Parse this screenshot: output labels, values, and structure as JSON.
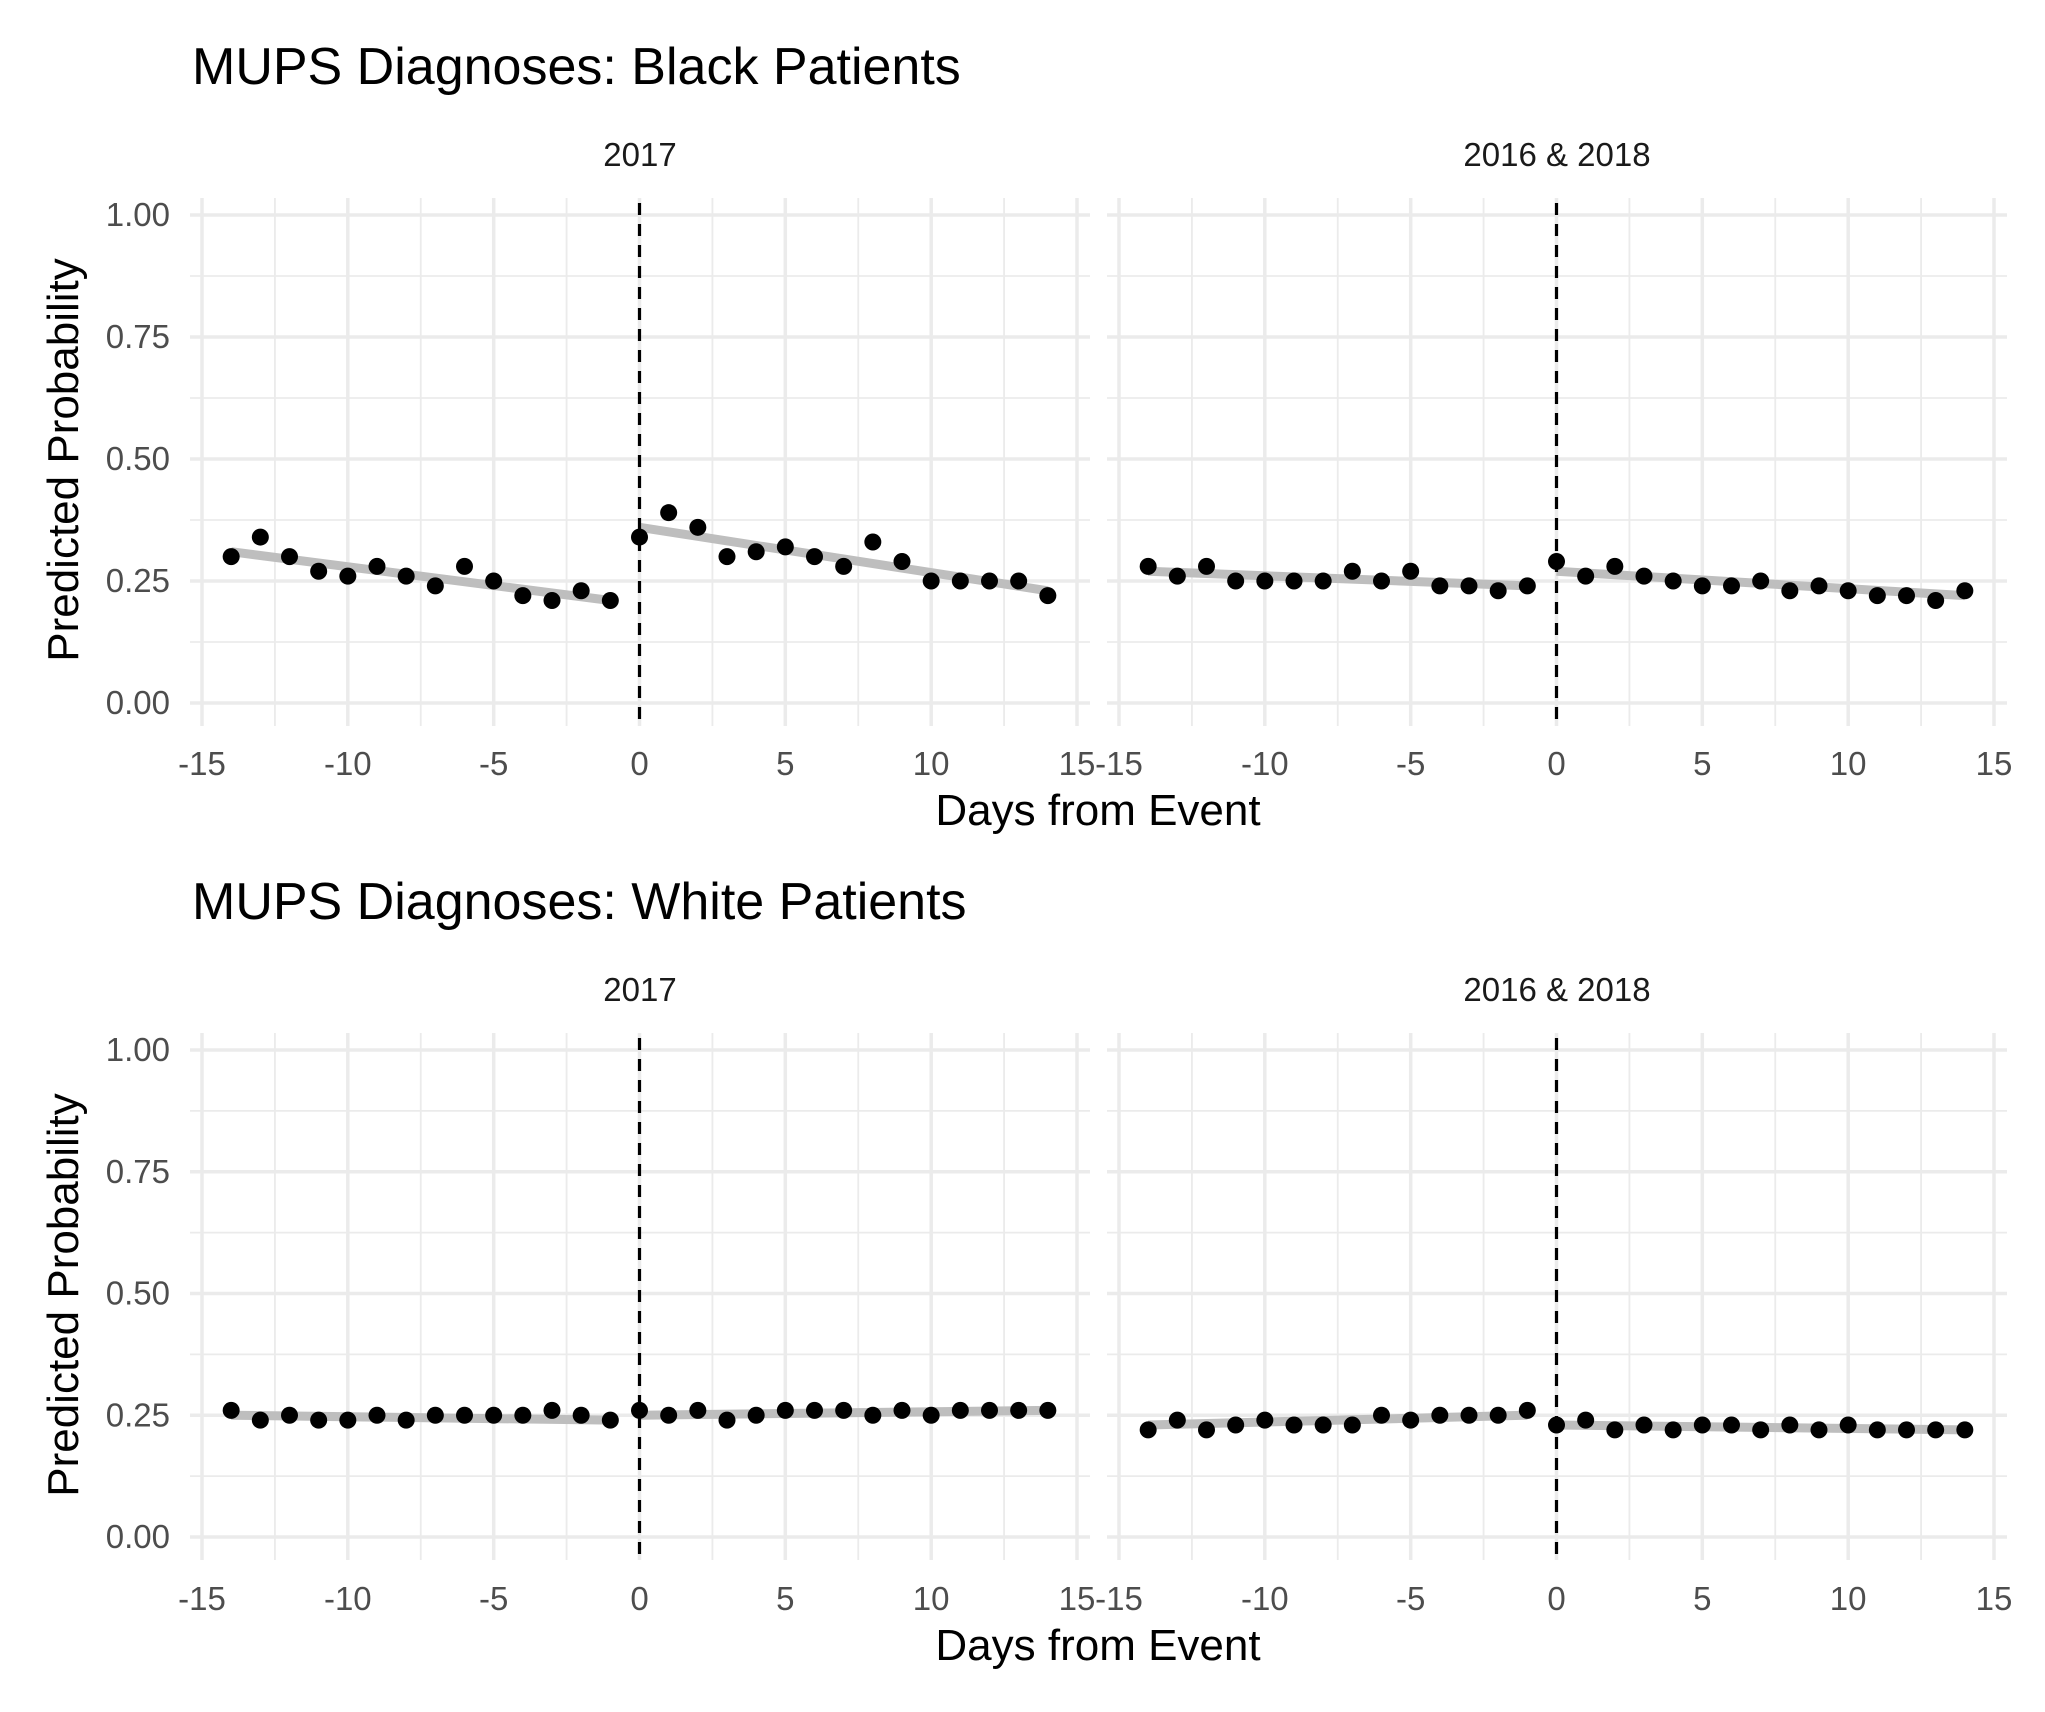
{
  "chart_data": [
    {
      "type": "scatter",
      "title": "MUPS Diagnoses: Black Patients",
      "xlabel": "Days from Event",
      "ylabel": "Predicted Probability",
      "xlim": [
        -15,
        15
      ],
      "ylim": [
        0,
        1
      ],
      "x_ticks": [
        "-15",
        "-10",
        "-5",
        "0",
        "5",
        "10",
        "15"
      ],
      "y_ticks": [
        "0.00",
        "0.25",
        "0.50",
        "0.75",
        "1.00"
      ],
      "event_line_x": 0,
      "panels": [
        {
          "label": "2017",
          "x": [
            -14,
            -13,
            -12,
            -11,
            -10,
            -9,
            -8,
            -7,
            -6,
            -5,
            -4,
            -3,
            -2,
            -1,
            0,
            1,
            2,
            3,
            4,
            5,
            6,
            7,
            8,
            9,
            10,
            11,
            12,
            13,
            14
          ],
          "y": [
            0.3,
            0.34,
            0.3,
            0.27,
            0.26,
            0.28,
            0.26,
            0.24,
            0.28,
            0.25,
            0.22,
            0.21,
            0.23,
            0.21,
            0.34,
            0.39,
            0.36,
            0.3,
            0.31,
            0.32,
            0.3,
            0.28,
            0.33,
            0.29,
            0.25,
            0.25,
            0.25,
            0.25,
            0.22
          ],
          "fit_pre": {
            "x": [
              -14,
              -1
            ],
            "y": [
              0.31,
              0.21
            ]
          },
          "fit_post": {
            "x": [
              0,
              14
            ],
            "y": [
              0.36,
              0.23
            ]
          }
        },
        {
          "label": "2016 & 2018",
          "x": [
            -14,
            -13,
            -12,
            -11,
            -10,
            -9,
            -8,
            -7,
            -6,
            -5,
            -4,
            -3,
            -2,
            -1,
            0,
            1,
            2,
            3,
            4,
            5,
            6,
            7,
            8,
            9,
            10,
            11,
            12,
            13,
            14
          ],
          "y": [
            0.28,
            0.26,
            0.28,
            0.25,
            0.25,
            0.25,
            0.25,
            0.27,
            0.25,
            0.27,
            0.24,
            0.24,
            0.23,
            0.24,
            0.29,
            0.26,
            0.28,
            0.26,
            0.25,
            0.24,
            0.24,
            0.25,
            0.23,
            0.24,
            0.23,
            0.22,
            0.22,
            0.21,
            0.23
          ],
          "fit_pre": {
            "x": [
              -14,
              -1
            ],
            "y": [
              0.27,
              0.24
            ]
          },
          "fit_post": {
            "x": [
              0,
              14
            ],
            "y": [
              0.27,
              0.22
            ]
          }
        }
      ]
    },
    {
      "type": "scatter",
      "title": "MUPS Diagnoses: White Patients",
      "xlabel": "Days from Event",
      "ylabel": "Predicted Probability",
      "xlim": [
        -15,
        15
      ],
      "ylim": [
        0,
        1
      ],
      "x_ticks": [
        "-15",
        "-10",
        "-5",
        "0",
        "5",
        "10",
        "15"
      ],
      "y_ticks": [
        "0.00",
        "0.25",
        "0.50",
        "0.75",
        "1.00"
      ],
      "event_line_x": 0,
      "panels": [
        {
          "label": "2017",
          "x": [
            -14,
            -13,
            -12,
            -11,
            -10,
            -9,
            -8,
            -7,
            -6,
            -5,
            -4,
            -3,
            -2,
            -1,
            0,
            1,
            2,
            3,
            4,
            5,
            6,
            7,
            8,
            9,
            10,
            11,
            12,
            13,
            14
          ],
          "y": [
            0.26,
            0.24,
            0.25,
            0.24,
            0.24,
            0.25,
            0.24,
            0.25,
            0.25,
            0.25,
            0.25,
            0.26,
            0.25,
            0.24,
            0.26,
            0.25,
            0.26,
            0.24,
            0.25,
            0.26,
            0.26,
            0.26,
            0.25,
            0.26,
            0.25,
            0.26,
            0.26,
            0.26,
            0.26
          ],
          "fit_pre": {
            "x": [
              -14,
              -1
            ],
            "y": [
              0.25,
              0.24
            ]
          },
          "fit_post": {
            "x": [
              0,
              14
            ],
            "y": [
              0.25,
              0.26
            ]
          }
        },
        {
          "label": "2016 & 2018",
          "x": [
            -14,
            -13,
            -12,
            -11,
            -10,
            -9,
            -8,
            -7,
            -6,
            -5,
            -4,
            -3,
            -2,
            -1,
            0,
            1,
            2,
            3,
            4,
            5,
            6,
            7,
            8,
            9,
            10,
            11,
            12,
            13,
            14
          ],
          "y": [
            0.22,
            0.24,
            0.22,
            0.23,
            0.24,
            0.23,
            0.23,
            0.23,
            0.25,
            0.24,
            0.25,
            0.25,
            0.25,
            0.26,
            0.23,
            0.24,
            0.22,
            0.23,
            0.22,
            0.23,
            0.23,
            0.22,
            0.23,
            0.22,
            0.23,
            0.22,
            0.22,
            0.22,
            0.22
          ],
          "fit_pre": {
            "x": [
              -14,
              -1
            ],
            "y": [
              0.23,
              0.25
            ]
          },
          "fit_post": {
            "x": [
              0,
              14
            ],
            "y": [
              0.23,
              0.22
            ]
          }
        }
      ]
    }
  ],
  "colors": {
    "points": "#000000",
    "fit_line": "#bebebe",
    "event_line": "#000000",
    "grid": "#ebebeb"
  }
}
